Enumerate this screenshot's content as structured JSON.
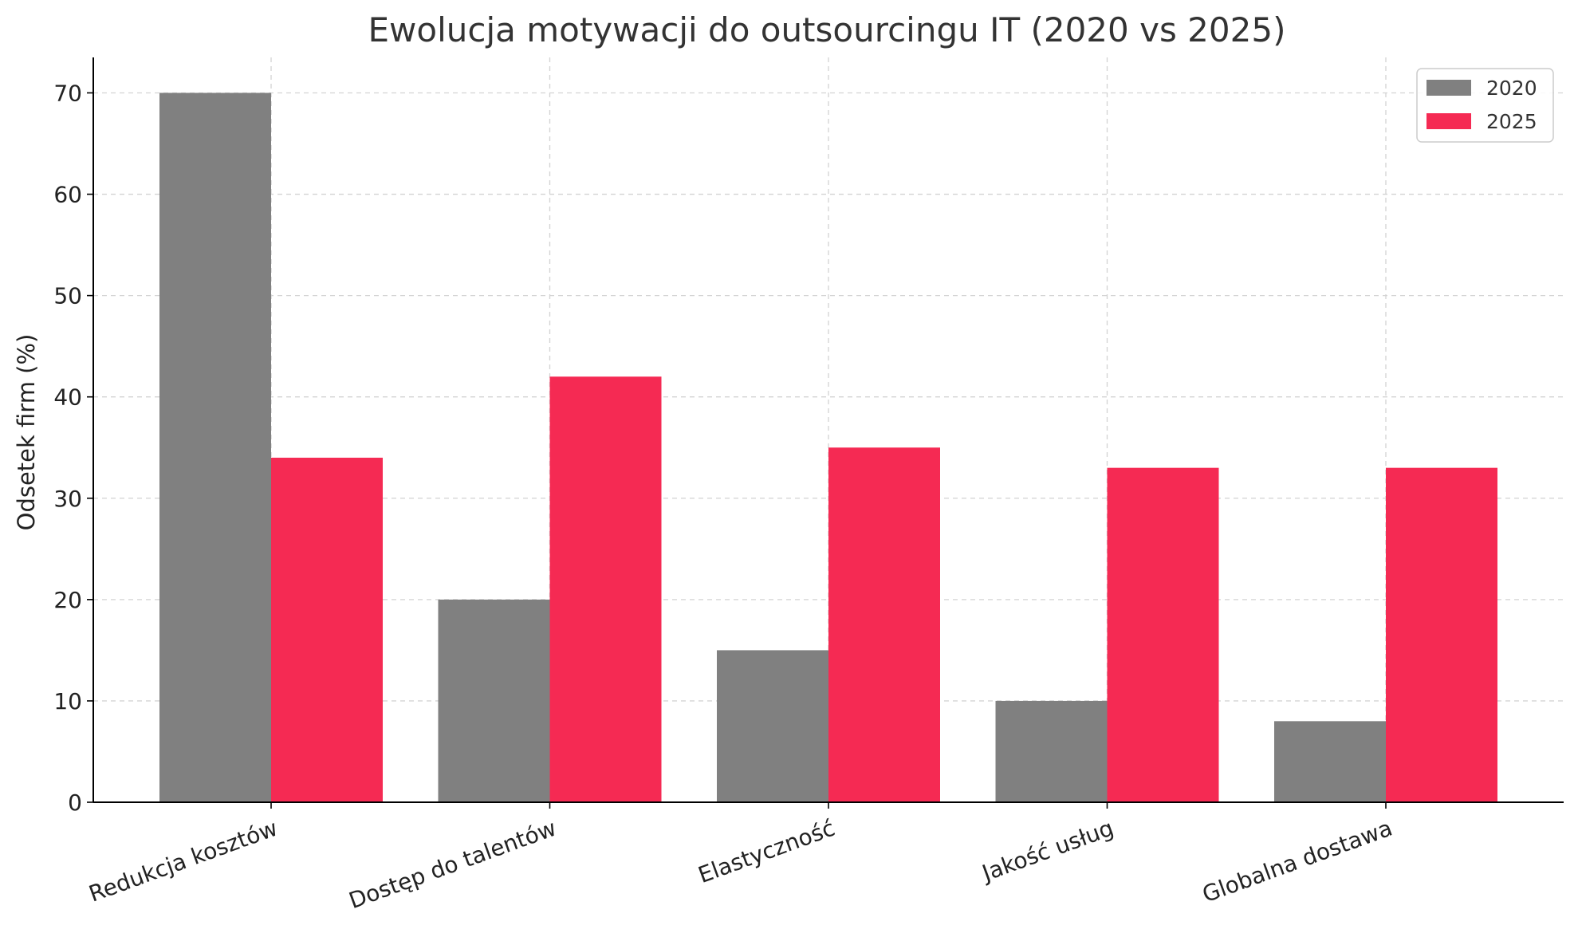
{
  "chart_data": {
    "type": "bar",
    "title": "Ewolucja motywacji do outsourcingu IT (2020 vs 2025)",
    "xlabel": "",
    "ylabel": "Odsetek firm (%)",
    "categories": [
      "Redukcja kosztów",
      "Dostęp do talentów",
      "Elastyczność",
      "Jakość usług",
      "Globalna dostawa"
    ],
    "series": [
      {
        "name": "2020",
        "values": [
          70,
          20,
          15,
          10,
          8
        ],
        "color": "#808080"
      },
      {
        "name": "2025",
        "values": [
          34,
          42,
          35,
          33,
          33
        ],
        "color": "#f52a53"
      }
    ],
    "ylim": [
      0,
      73.5
    ],
    "yticks": [
      0,
      10,
      20,
      30,
      40,
      50,
      60,
      70
    ],
    "grid": true,
    "legend_position": "top-right"
  }
}
